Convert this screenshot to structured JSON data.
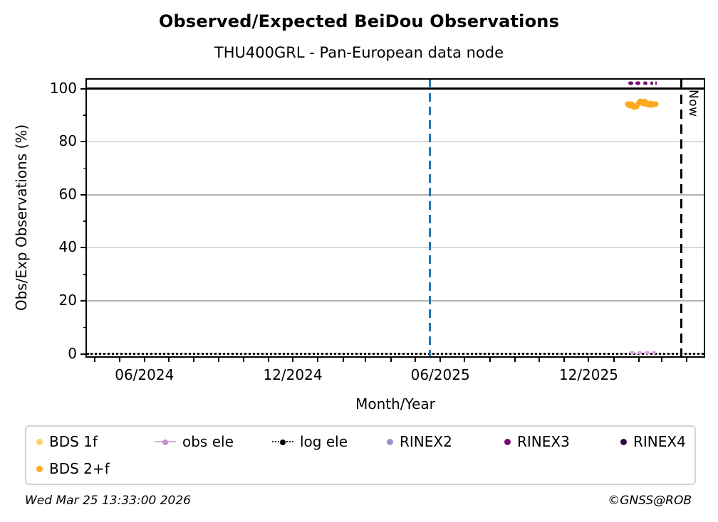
{
  "meta": {
    "timestamp": "Wed Mar 25 13:33:00 2026",
    "copyright": "©GNSS@ROB"
  },
  "chart_data": {
    "type": "scatter",
    "title": "Observed/Expected BeiDou Observations",
    "subtitle": "THU400GRL - Pan-European data node",
    "xlabel": "Month/Year",
    "ylabel": "Obs/Exp Observations (%)",
    "x_axis": {
      "min": "2024-03-22",
      "max": "2026-04-22",
      "major_ticks": [
        {
          "date": "2024-06-01",
          "label": "06/2024"
        },
        {
          "date": "2024-12-01",
          "label": "12/2024"
        },
        {
          "date": "2025-06-01",
          "label": "06/2025"
        },
        {
          "date": "2025-12-01",
          "label": "12/2025"
        }
      ],
      "minor_ticks": "monthly"
    },
    "y_axis": {
      "min": -0.9,
      "max": 103.4,
      "major_ticks": [
        0,
        20,
        40,
        60,
        80,
        100
      ],
      "minor_ticks": [
        10,
        30,
        50,
        70,
        90
      ],
      "gridlines": [
        0,
        20,
        40,
        60,
        80
      ]
    },
    "reference_lines": {
      "hundred_pct": {
        "y": 100,
        "color": "#000000",
        "style": "solid"
      },
      "log_ele": {
        "y": 0,
        "color": "#000000",
        "style": "dotted",
        "legend_label": "log ele"
      },
      "event_line": {
        "date": "2025-05-19",
        "color": "#1f77b4",
        "style": "dashed"
      },
      "now_line": {
        "date": "2026-03-25",
        "color": "#000000",
        "style": "dashed",
        "label": "Now"
      }
    },
    "series": [
      {
        "name": "BDS 1f",
        "color": "#FFD169",
        "marker": "dot",
        "start": "2026-01-18",
        "step_days": 1,
        "values": [
          94.0,
          94.2,
          93.7,
          93.9,
          94.2,
          93.8,
          93.3,
          93.0,
          93.6,
          93.3,
          93.1,
          93.6,
          94.0,
          94.4,
          94.9,
          95.2,
          95.0,
          94.7,
          94.4,
          94.7,
          95.1,
          94.8,
          94.5,
          94.1,
          94.3,
          94.0,
          93.9,
          94.1,
          94.5,
          94.2,
          93.9,
          94.2,
          94.3,
          94.0,
          94.2,
          94.1
        ]
      },
      {
        "name": "BDS 2+f",
        "color": "#FFA91E",
        "marker": "dot",
        "start": "2026-01-18",
        "step_days": 1,
        "values": [
          94.2,
          93.8,
          94.1,
          93.6,
          94.0,
          94.3,
          93.7,
          93.1,
          93.4,
          93.0,
          93.5,
          93.2,
          93.8,
          94.2,
          94.7,
          95.1,
          95.4,
          95.2,
          94.8,
          94.3,
          94.9,
          95.3,
          95.0,
          94.4,
          93.9,
          94.5,
          94.2,
          93.8,
          94.3,
          94.6,
          94.1,
          93.7,
          94.0,
          94.4,
          94.1,
          94.3
        ]
      },
      {
        "name": "obs ele",
        "color": "#D8A4DE",
        "marker": "segments",
        "value": 0.5,
        "segments": [
          [
            "2026-01-21",
            "2026-01-27"
          ],
          [
            "2026-01-30",
            "2026-02-05"
          ],
          [
            "2026-02-08",
            "2026-02-14"
          ],
          [
            "2026-02-17",
            "2026-02-22"
          ]
        ]
      },
      {
        "name": "RINEX3",
        "color": "#750D75",
        "marker": "segments",
        "value": 102.1,
        "segments": [
          [
            "2026-01-19",
            "2026-01-25"
          ],
          [
            "2026-01-28",
            "2026-02-03"
          ],
          [
            "2026-02-06",
            "2026-02-12"
          ],
          [
            "2026-02-15",
            "2026-02-19"
          ],
          [
            "2026-02-21",
            "2026-02-23"
          ]
        ]
      },
      {
        "name": "RINEX2",
        "color": "#9A92CC",
        "marker": "dot",
        "values": []
      },
      {
        "name": "RINEX4",
        "color": "#300A38",
        "marker": "dot",
        "values": []
      }
    ],
    "legend": {
      "items": [
        {
          "label": "BDS 1f",
          "marker": "dot",
          "color": "#FFD169",
          "row": 0,
          "col": 0
        },
        {
          "label": "obs ele",
          "marker": "line-dot",
          "color": "#DDA8DD",
          "dot_color": "#C791CF",
          "row": 0,
          "col": 1
        },
        {
          "label": "log ele",
          "marker": "dotted-line-dot",
          "color": "#000000",
          "row": 0,
          "col": 2
        },
        {
          "label": "RINEX2",
          "marker": "dot",
          "color": "#9A92CC",
          "row": 0,
          "col": 3
        },
        {
          "label": "RINEX3",
          "marker": "dot",
          "color": "#750D75",
          "row": 0,
          "col": 4
        },
        {
          "label": "RINEX4",
          "marker": "dot",
          "color": "#300A38",
          "row": 0,
          "col": 5
        },
        {
          "label": "BDS 2+f",
          "marker": "dot",
          "color": "#FFA91E",
          "row": 1,
          "col": 0
        }
      ]
    }
  }
}
